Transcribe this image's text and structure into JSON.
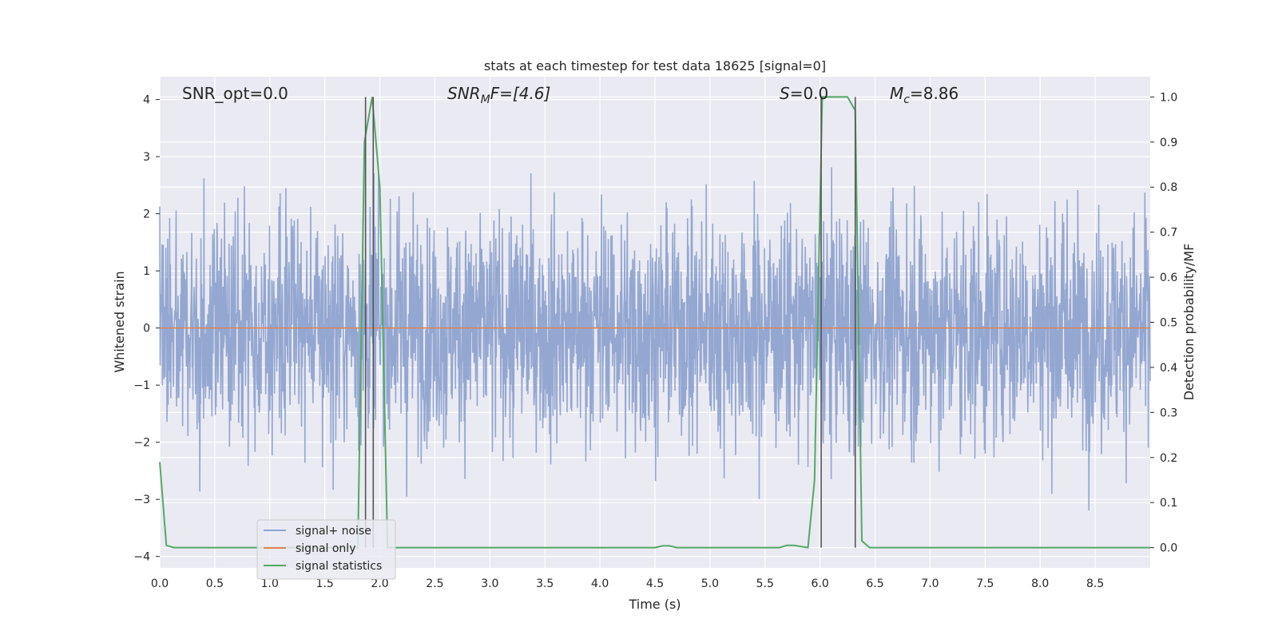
{
  "chart_data": {
    "type": "line",
    "title": "stats at each timestep for test data 18625 [signal=0]",
    "xlabel": "Time (s)",
    "ylabel": "Whitened strain",
    "y2label": "Detection probability/MF",
    "xlim": [
      0.0,
      9.0
    ],
    "ylim": [
      -4.2,
      4.4
    ],
    "y2lim": [
      -0.045,
      1.045
    ],
    "xticks": [
      "0.0",
      "0.5",
      "1.0",
      "1.5",
      "2.0",
      "2.5",
      "3.0",
      "3.5",
      "4.0",
      "4.5",
      "5.0",
      "5.5",
      "6.0",
      "6.5",
      "7.0",
      "7.5",
      "8.0",
      "8.5"
    ],
    "yticks": [
      "4",
      "3",
      "2",
      "1",
      "0",
      "−1",
      "−2",
      "−3",
      "−4"
    ],
    "y2ticks": [
      "1.0",
      "0.9",
      "0.8",
      "0.7",
      "0.6",
      "0.5",
      "0.4",
      "0.3",
      "0.2",
      "0.1",
      "0.0"
    ],
    "grid": true,
    "legend_position": "lower-left",
    "annotations": {
      "snr_opt": "SNR_opt=0.0",
      "snr_mf_main": "SNR",
      "snr_mf_sub": "M",
      "snr_mf_tail": "F=[4.6]",
      "s_main": "S",
      "s_tail": "=0.0",
      "mc_main": "M",
      "mc_sub": "c",
      "mc_tail": "=8.86"
    },
    "vertical_lines_x": [
      1.87,
      1.94,
      6.01,
      6.32
    ],
    "series": [
      {
        "name": "signal+ noise",
        "color": "#8fa3cf",
        "axis": "left",
        "description_values": "whitened noise, approximately Gaussian, spanning about -3.7 to 4.0",
        "amplitude_range": [
          -3.7,
          4.0
        ]
      },
      {
        "name": "signal only",
        "color": "#dd8452",
        "axis": "left",
        "x": [
          0.0,
          9.0
        ],
        "y": [
          0.0,
          0.0
        ]
      },
      {
        "name": "signal statistics",
        "color": "#55a868",
        "axis": "right",
        "x": [
          0.0,
          0.06,
          0.13,
          1.8,
          1.86,
          1.93,
          2.0,
          2.07,
          2.13,
          4.5,
          4.57,
          4.63,
          4.7,
          5.63,
          5.7,
          5.76,
          5.89,
          5.95,
          6.02,
          6.08,
          6.25,
          6.32,
          6.38,
          6.45,
          9.0
        ],
        "y": [
          0.19,
          0.005,
          0.0,
          0.0,
          0.9,
          1.0,
          0.8,
          0.0,
          0.0,
          0.0,
          0.004,
          0.004,
          0.0,
          0.0,
          0.005,
          0.005,
          0.0,
          0.15,
          1.0,
          1.0,
          1.0,
          0.97,
          0.015,
          0.0,
          0.0
        ]
      }
    ]
  }
}
